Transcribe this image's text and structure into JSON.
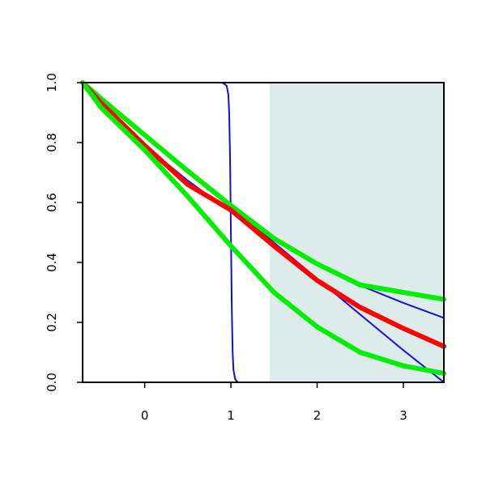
{
  "chart_data": {
    "type": "line",
    "title": "",
    "xlabel": "",
    "ylabel": "",
    "xlim": [
      -0.72,
      3.47
    ],
    "ylim": [
      0,
      1
    ],
    "xticks": [
      0,
      1,
      2,
      3
    ],
    "xtick_labels": [
      "0",
      "1",
      "2",
      "3"
    ],
    "yticks": [
      0,
      0.2,
      0.4,
      0.6,
      0.8,
      1.0
    ],
    "ytick_labels": [
      "0.0",
      "0.2",
      "0.4",
      "0.6",
      "0.8",
      "1.0"
    ],
    "grid": false,
    "legend": "none",
    "shaded_region": {
      "x_from": 1.45,
      "x_to": 3.47,
      "color": "#deebeb"
    },
    "series": [
      {
        "color": "#1010dd",
        "weight": "thin",
        "points": [
          [
            -0.72,
            1.0
          ],
          [
            -0.5,
            1.0
          ],
          [
            0.0,
            1.0
          ],
          [
            0.5,
            1.0
          ],
          [
            0.9,
            1.0
          ],
          [
            0.95,
            0.99
          ],
          [
            0.97,
            0.96
          ],
          [
            0.98,
            0.9
          ],
          [
            0.99,
            0.75
          ],
          [
            1.0,
            0.5
          ],
          [
            1.01,
            0.25
          ],
          [
            1.02,
            0.1
          ],
          [
            1.03,
            0.04
          ],
          [
            1.05,
            0.01
          ],
          [
            1.08,
            0.0
          ],
          [
            1.5,
            0.0
          ],
          [
            2.0,
            0.0
          ],
          [
            3.0,
            0.0
          ],
          [
            3.47,
            0.0
          ]
        ]
      },
      {
        "color": "#1010dd",
        "weight": "thin",
        "points": [
          [
            -0.72,
            1.0
          ],
          [
            -0.5,
            0.945
          ],
          [
            0.0,
            0.825
          ],
          [
            0.5,
            0.705
          ],
          [
            1.0,
            0.586
          ],
          [
            1.45,
            0.478
          ],
          [
            2.0,
            0.346
          ],
          [
            2.5,
            0.226
          ],
          [
            3.0,
            0.107
          ],
          [
            3.47,
            0.0
          ]
        ]
      },
      {
        "color": "#1010dd",
        "weight": "thin",
        "points": [
          [
            -0.72,
            1.0
          ],
          [
            -0.5,
            0.932
          ],
          [
            0.0,
            0.79
          ],
          [
            0.5,
            0.673
          ],
          [
            1.0,
            0.568
          ],
          [
            1.5,
            0.475
          ],
          [
            2.0,
            0.393
          ],
          [
            2.5,
            0.323
          ],
          [
            3.0,
            0.265
          ],
          [
            3.47,
            0.215
          ]
        ]
      },
      {
        "color": "#00ee00",
        "weight": "thick",
        "points": [
          [
            -0.72,
            1.0
          ],
          [
            -0.5,
            0.945
          ],
          [
            0.0,
            0.825
          ],
          [
            0.5,
            0.705
          ],
          [
            1.0,
            0.59
          ],
          [
            1.5,
            0.48
          ],
          [
            2.0,
            0.395
          ],
          [
            2.5,
            0.325
          ],
          [
            3.0,
            0.3
          ],
          [
            3.47,
            0.277
          ]
        ]
      },
      {
        "color": "#ff0000",
        "weight": "thick",
        "points": [
          [
            -0.72,
            1.0
          ],
          [
            -0.5,
            0.93
          ],
          [
            0.0,
            0.79
          ],
          [
            0.5,
            0.66
          ],
          [
            1.0,
            0.575
          ],
          [
            1.5,
            0.455
          ],
          [
            2.0,
            0.34
          ],
          [
            2.5,
            0.25
          ],
          [
            3.0,
            0.18
          ],
          [
            3.47,
            0.12
          ]
        ]
      },
      {
        "color": "#00ee00",
        "weight": "thick",
        "points": [
          [
            -0.72,
            1.0
          ],
          [
            -0.5,
            0.915
          ],
          [
            0.0,
            0.775
          ],
          [
            0.5,
            0.62
          ],
          [
            1.0,
            0.455
          ],
          [
            1.5,
            0.3
          ],
          [
            2.0,
            0.185
          ],
          [
            2.5,
            0.1
          ],
          [
            3.0,
            0.055
          ],
          [
            3.47,
            0.03
          ]
        ]
      }
    ]
  }
}
